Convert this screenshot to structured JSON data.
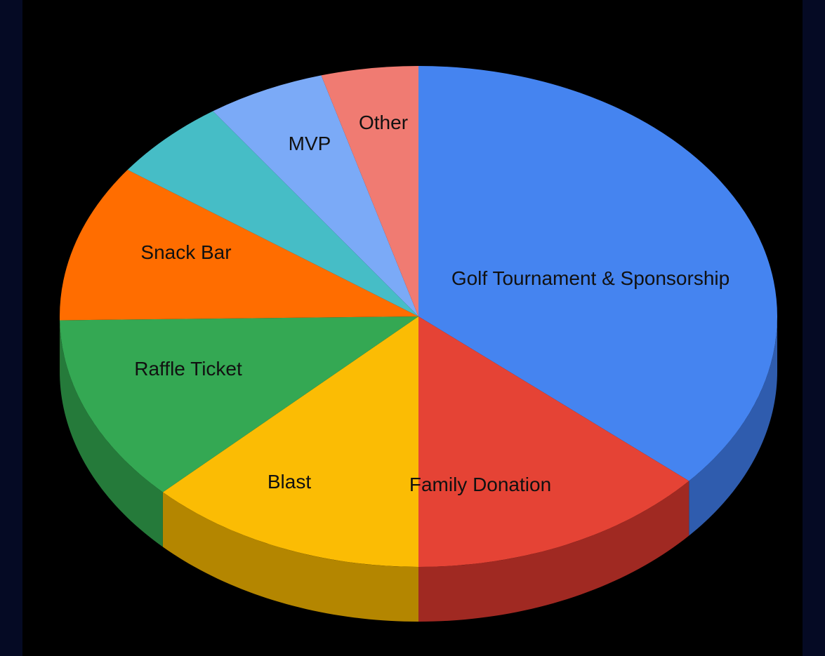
{
  "chart_data": {
    "type": "pie",
    "style": "3d",
    "start_angle_deg": 0,
    "direction": "clockwise",
    "slices": [
      {
        "label": "Golf Tournament & Sponsorship",
        "value": 37.5,
        "color": "#4584f0",
        "side_color": "#2f5cae"
      },
      {
        "label": "Family Donation",
        "value": 14.0,
        "color": "#e54335",
        "side_color": "#a02922"
      },
      {
        "label": "Blast",
        "value": 13.0,
        "color": "#fbbc04",
        "side_color": "#b48600"
      },
      {
        "label": "Raffle Ticket",
        "value": 12.5,
        "color": "#34a853",
        "side_color": "#257a3a"
      },
      {
        "label": "Snack Bar",
        "value": 10.5,
        "color": "#ff6d00",
        "side_color": "#b34c00"
      },
      {
        "label": "",
        "value": 5.5,
        "color": "#46bdc6",
        "side_color": "#2f8c93"
      },
      {
        "label": "MVP",
        "value": 5.5,
        "color": "#7baaf7",
        "side_color": "#5577b0"
      },
      {
        "label": "Other",
        "value": 4.5,
        "color": "#f07b72",
        "side_color": "#b0564f"
      }
    ]
  }
}
